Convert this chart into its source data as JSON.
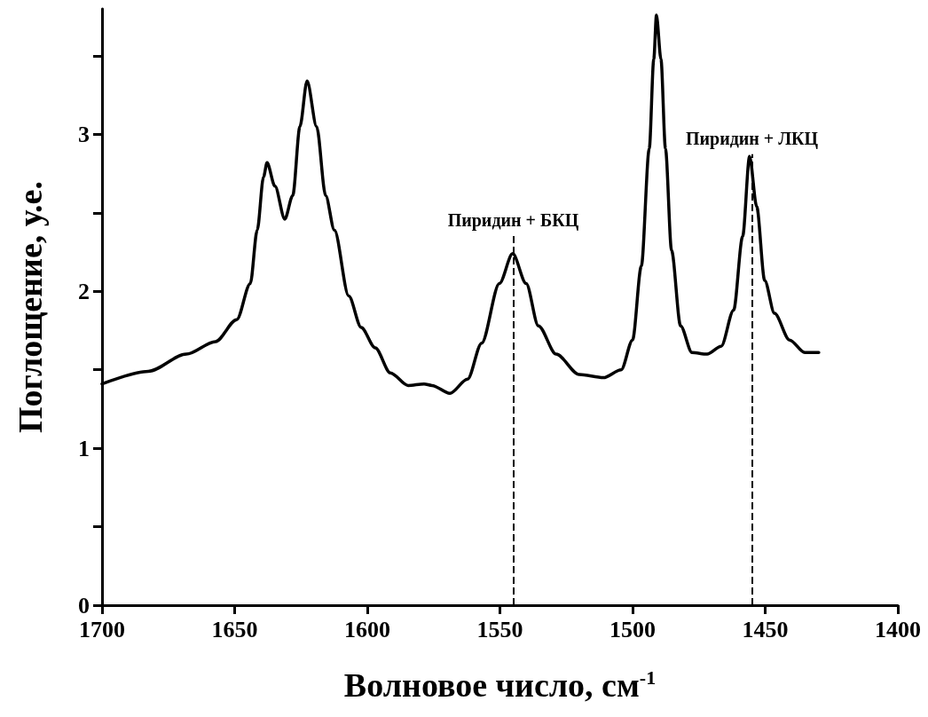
{
  "chart_data": {
    "type": "line",
    "xlabel": "Волновое число, см$^{-1}$",
    "ylabel": "Поглощение, у.е.",
    "xlim": [
      1700,
      1400
    ],
    "xticks": [
      1700,
      1650,
      1600,
      1550,
      1500,
      1450,
      1400
    ],
    "ylim": [
      0,
      3.8
    ],
    "yticks": [
      0,
      {
        "value": 0.5,
        "label": null
      },
      1,
      {
        "value": 1.5,
        "label": null
      },
      2,
      {
        "value": 2.5,
        "label": null
      },
      3,
      {
        "value": 3.5,
        "label": null
      }
    ],
    "grid": false,
    "marker": "none",
    "line_style": "solid",
    "ref_lines": [
      {
        "axis": "x",
        "value": 1545,
        "label": "Пиридин + БКЦ",
        "color": "#000000",
        "line_style": "dashed"
      },
      {
        "axis": "x",
        "value": 1455,
        "label": "Пиридин + ЛКЦ",
        "color": "#000000",
        "line_style": "dashed"
      }
    ],
    "series": [
      {
        "color": "#000000",
        "x": [
          1700,
          1682.6,
          1668.2,
          1657.2,
          1649.2,
          1644.1,
          1641.5,
          1639.1,
          1637.8,
          1634.8,
          1631.1,
          1628.1,
          1625.4,
          1622.7,
          1619.1,
          1615.7,
          1612.4,
          1607.0,
          1602.3,
          1597.0,
          1591.3,
          1584.6,
          1578.6,
          1575.6,
          1568.9,
          1562.2,
          1556.9,
          1550.2,
          1545.2,
          1540.1,
          1535.5,
          1528.8,
          1520.1,
          1511.0,
          1504.3,
          1500.0,
          1496.7,
          1493.7,
          1492.0,
          1491.0,
          1489.3,
          1487.6,
          1485.3,
          1481.9,
          1477.6,
          1471.9,
          1466.6,
          1461.9,
          1458.5,
          1455.9,
          1453.2,
          1450.2,
          1446.5,
          1440.8,
          1435.1,
          1429.8
        ],
        "values": [
          1.41,
          1.49,
          1.6,
          1.68,
          1.82,
          2.05,
          2.39,
          2.73,
          2.82,
          2.67,
          2.46,
          2.61,
          3.05,
          3.34,
          3.05,
          2.61,
          2.39,
          1.97,
          1.77,
          1.64,
          1.48,
          1.4,
          1.41,
          1.4,
          1.35,
          1.44,
          1.67,
          2.05,
          2.24,
          2.05,
          1.78,
          1.6,
          1.47,
          1.45,
          1.5,
          1.69,
          2.16,
          2.91,
          3.48,
          3.76,
          3.48,
          2.91,
          2.26,
          1.78,
          1.61,
          1.6,
          1.65,
          1.88,
          2.35,
          2.86,
          2.54,
          2.07,
          1.86,
          1.69,
          1.61,
          1.61
        ]
      }
    ]
  }
}
